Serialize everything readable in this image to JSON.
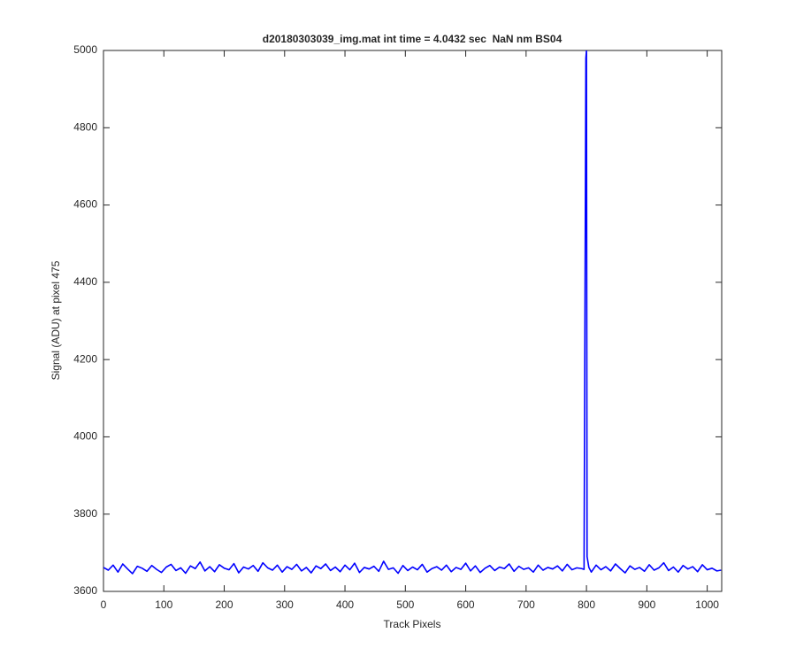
{
  "chart_data": {
    "type": "line",
    "title": "d20180303039_img.mat int time = 4.0432 sec  NaN nm BS04",
    "xlabel": "Track Pixels",
    "ylabel": "Signal (ADU) at pixel 475",
    "xlim": [
      0,
      1024
    ],
    "ylim": [
      3600,
      5000
    ],
    "xticks": [
      0,
      100,
      200,
      300,
      400,
      500,
      600,
      700,
      800,
      900,
      1000
    ],
    "yticks": [
      3600,
      3800,
      4000,
      4200,
      4400,
      4600,
      4800,
      5000
    ],
    "grid": false,
    "series": [
      {
        "color": "#0000ff",
        "x": [
          0,
          8,
          16,
          24,
          32,
          40,
          48,
          56,
          64,
          72,
          80,
          88,
          96,
          104,
          112,
          120,
          128,
          136,
          144,
          152,
          160,
          168,
          176,
          184,
          192,
          200,
          208,
          216,
          224,
          232,
          240,
          248,
          256,
          264,
          272,
          280,
          288,
          296,
          304,
          312,
          320,
          328,
          336,
          344,
          352,
          360,
          368,
          376,
          384,
          392,
          400,
          408,
          416,
          424,
          432,
          440,
          448,
          456,
          464,
          472,
          480,
          488,
          496,
          504,
          512,
          520,
          528,
          536,
          544,
          552,
          560,
          568,
          576,
          584,
          592,
          600,
          608,
          616,
          624,
          632,
          640,
          648,
          656,
          664,
          672,
          680,
          688,
          696,
          704,
          712,
          720,
          728,
          736,
          744,
          752,
          760,
          768,
          776,
          784,
          792,
          796,
          799,
          800,
          801,
          804,
          808,
          816,
          824,
          832,
          840,
          848,
          856,
          864,
          872,
          880,
          888,
          896,
          904,
          912,
          920,
          928,
          936,
          944,
          952,
          960,
          968,
          976,
          984,
          992,
          1000,
          1008,
          1016,
          1023
        ],
        "values": [
          3662,
          3655,
          3668,
          3650,
          3671,
          3658,
          3646,
          3665,
          3660,
          3652,
          3667,
          3657,
          3649,
          3663,
          3670,
          3654,
          3661,
          3647,
          3666,
          3659,
          3676,
          3653,
          3664,
          3651,
          3669,
          3660,
          3656,
          3672,
          3648,
          3663,
          3658,
          3667,
          3652,
          3674,
          3661,
          3655,
          3668,
          3650,
          3664,
          3657,
          3670,
          3653,
          3662,
          3648,
          3666,
          3659,
          3671,
          3654,
          3663,
          3651,
          3668,
          3656,
          3673,
          3649,
          3662,
          3658,
          3665,
          3652,
          3678,
          3657,
          3661,
          3647,
          3667,
          3654,
          3663,
          3656,
          3670,
          3650,
          3659,
          3664,
          3655,
          3668,
          3651,
          3662,
          3657,
          3673,
          3653,
          3666,
          3649,
          3660,
          3667,
          3654,
          3663,
          3659,
          3671,
          3652,
          3665,
          3657,
          3661,
          3650,
          3668,
          3655,
          3662,
          3658,
          3666,
          3653,
          3670,
          3656,
          3661,
          3659,
          3657,
          4980,
          5000,
          3690,
          3662,
          3650,
          3668,
          3656,
          3664,
          3653,
          3671,
          3659,
          3648,
          3666,
          3657,
          3662,
          3652,
          3669,
          3655,
          3661,
          3674,
          3654,
          3663,
          3650,
          3667,
          3658,
          3664,
          3651,
          3669,
          3656,
          3660,
          3653,
          3655
        ]
      }
    ]
  }
}
